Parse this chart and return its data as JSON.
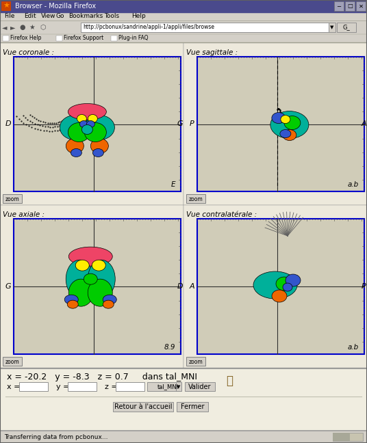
{
  "title_bar": "Browser - Mozilla Firefox",
  "menu_items": [
    "File",
    "Edit",
    "View",
    "Go",
    "Bookmarks",
    "Tools",
    "Help"
  ],
  "url": "http://pcbonux/sandrine/appli-1/appli/files/browse",
  "bookmarks": [
    "Firefox Help",
    "Firefox Support",
    "Plug-in FAQ"
  ],
  "panel_labels": [
    "Vue coronale :",
    "Vue sagittale :",
    "Vue axiale :",
    "Vue contralatérale :"
  ],
  "side_labels_coronal": [
    "D",
    "G"
  ],
  "side_labels_sagittal": [
    "P",
    "A"
  ],
  "side_labels_axial": [
    "G",
    "D"
  ],
  "side_labels_contra": [
    "A",
    "P"
  ],
  "corner_labels": [
    "E",
    "a.b",
    "8.9",
    "a.b"
  ],
  "coords_text": "x = -20.2   y = -8.3   z = 0.7     dans tal_MNI",
  "input_labels": [
    "x =",
    "y =",
    "z ="
  ],
  "dropdown_text": "tal_MNI",
  "button1": "Valider",
  "button2": "Retour à l'accueil",
  "button3": "Fermer",
  "status_text": "Transferring data from pcbonux...",
  "bg_color": "#d4d0c8",
  "panel_bg": "#ede9dc",
  "title_bg": "#000080",
  "panel_border": "#0000cc",
  "colors": {
    "teal": "#00b09a",
    "green": "#00cc00",
    "orange": "#ee6600",
    "red_pink": "#ee4466",
    "blue": "#3355cc",
    "yellow": "#ffee00",
    "light_green": "#66dd44",
    "brain_gray": "#c8c4b0",
    "panel_content_bg": "#d0ccb8",
    "white": "#ffffff"
  }
}
